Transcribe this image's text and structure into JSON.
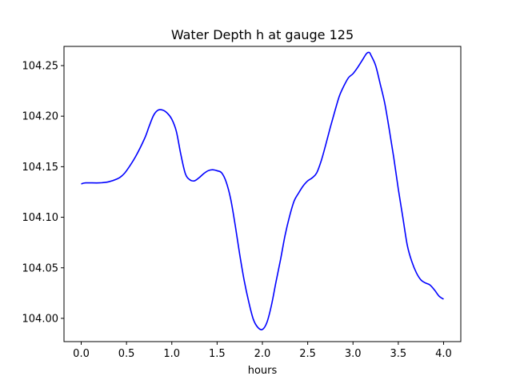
{
  "chart_data": {
    "type": "line",
    "title": "Water Depth h at gauge 125",
    "xlabel": "hours",
    "ylabel": "",
    "xlim": [
      -0.19,
      4.19
    ],
    "ylim": [
      103.977,
      104.269
    ],
    "xticks": [
      0.0,
      0.5,
      1.0,
      1.5,
      2.0,
      2.5,
      3.0,
      3.5,
      4.0
    ],
    "xtick_labels": [
      "0.0",
      "0.5",
      "1.0",
      "1.5",
      "2.0",
      "2.5",
      "3.0",
      "3.5",
      "4.0"
    ],
    "yticks": [
      104.0,
      104.05,
      104.1,
      104.15,
      104.2,
      104.25
    ],
    "ytick_labels": [
      "104.00",
      "104.05",
      "104.10",
      "104.15",
      "104.20",
      "104.25"
    ],
    "grid": false,
    "series": [
      {
        "color": "#0000ff",
        "x": [
          0.0,
          0.05,
          0.2,
          0.3,
          0.4,
          0.45,
          0.5,
          0.6,
          0.7,
          0.75,
          0.8,
          0.85,
          0.9,
          0.95,
          1.0,
          1.05,
          1.1,
          1.15,
          1.2,
          1.25,
          1.3,
          1.35,
          1.4,
          1.45,
          1.5,
          1.55,
          1.6,
          1.65,
          1.7,
          1.75,
          1.8,
          1.85,
          1.9,
          1.95,
          2.0,
          2.05,
          2.1,
          2.15,
          2.2,
          2.25,
          2.3,
          2.35,
          2.4,
          2.45,
          2.5,
          2.55,
          2.6,
          2.65,
          2.7,
          2.75,
          2.8,
          2.85,
          2.9,
          2.95,
          3.0,
          3.05,
          3.1,
          3.15,
          3.18,
          3.2,
          3.25,
          3.3,
          3.35,
          3.4,
          3.45,
          3.5,
          3.55,
          3.6,
          3.65,
          3.7,
          3.75,
          3.8,
          3.85,
          3.9,
          3.95,
          4.0
        ],
        "y": [
          104.133,
          104.134,
          104.134,
          104.135,
          104.138,
          104.141,
          104.146,
          104.16,
          104.178,
          104.19,
          104.201,
          104.206,
          104.206,
          104.203,
          104.197,
          104.185,
          104.162,
          104.143,
          104.137,
          104.136,
          104.139,
          104.143,
          104.146,
          104.147,
          104.146,
          104.144,
          104.135,
          104.118,
          104.092,
          104.063,
          104.037,
          104.016,
          103.999,
          103.991,
          103.989,
          103.996,
          104.013,
          104.036,
          104.058,
          104.082,
          104.101,
          104.116,
          104.124,
          104.131,
          104.136,
          104.139,
          104.144,
          104.156,
          104.172,
          104.189,
          104.205,
          104.22,
          104.23,
          104.238,
          104.242,
          104.248,
          104.255,
          104.262,
          104.263,
          104.26,
          104.25,
          104.232,
          104.213,
          104.187,
          104.159,
          104.128,
          104.1,
          104.072,
          104.056,
          104.045,
          104.038,
          104.035,
          104.033,
          104.028,
          104.022,
          104.019
        ]
      }
    ]
  }
}
